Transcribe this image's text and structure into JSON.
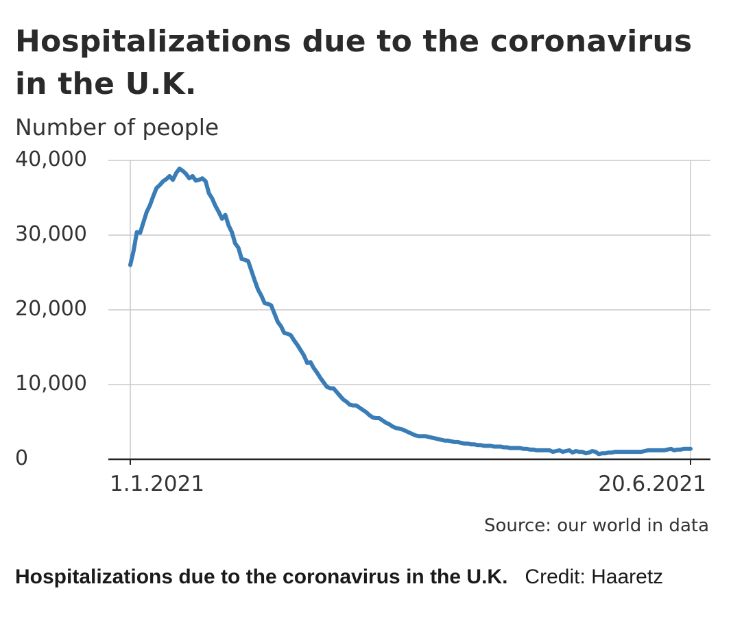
{
  "chart_data": {
    "type": "line",
    "title": "Hospitalizations due to the coronavirus in the U.K.",
    "ylabel": "Number of people",
    "xlabel": "",
    "ylim": [
      0,
      40000
    ],
    "yticks": [
      0,
      10000,
      20000,
      30000,
      40000
    ],
    "ytick_labels": [
      "0",
      "10,000",
      "20,000",
      "30,000",
      "40,000"
    ],
    "xtick_labels": [
      "1.1.2021",
      "20.6.2021"
    ],
    "grid": "horizontal and vertical at ticks",
    "line_color": "#3a7db6",
    "series": [
      {
        "values": [
          26000,
          27900,
          30400,
          30300,
          31700,
          33100,
          34000,
          35200,
          36300,
          36700,
          37200,
          37500,
          37900,
          37400,
          38300,
          38900,
          38600,
          38200,
          37600,
          37900,
          37300,
          37400,
          37600,
          37200,
          35600,
          34900,
          33900,
          33100,
          32200,
          32700,
          31300,
          30400,
          28900,
          28300,
          26800,
          26700,
          26500,
          25200,
          23900,
          22700,
          21900,
          20900,
          20800,
          20600,
          19500,
          18400,
          17800,
          16900,
          16800,
          16600,
          15900,
          15300,
          14600,
          13900,
          12900,
          13000,
          12200,
          11600,
          10900,
          10300,
          9700,
          9500,
          9500,
          9000,
          8500,
          8000,
          7700,
          7300,
          7200,
          7200,
          6900,
          6600,
          6300,
          5900,
          5600,
          5500,
          5500,
          5200,
          4900,
          4700,
          4400,
          4200,
          4100,
          4000,
          3800,
          3600,
          3400,
          3200,
          3100,
          3100,
          3100,
          3000,
          2900,
          2800,
          2700,
          2600,
          2500,
          2500,
          2400,
          2300,
          2300,
          2200,
          2100,
          2100,
          2000,
          2000,
          1900,
          1900,
          1800,
          1800,
          1800,
          1700,
          1700,
          1700,
          1600,
          1600,
          1500,
          1500,
          1500,
          1500,
          1400,
          1400,
          1300,
          1300,
          1200,
          1200,
          1200,
          1200,
          1200,
          1000,
          1100,
          1200,
          1000,
          1100,
          1200,
          900,
          1100,
          1000,
          1000,
          800,
          900,
          1100,
          1000,
          700,
          800,
          800,
          900,
          900,
          1000,
          1000,
          1000,
          1000,
          1000,
          1000,
          1000,
          1000,
          1000,
          1100,
          1200,
          1200,
          1200,
          1200,
          1200,
          1200,
          1300,
          1400,
          1200,
          1300,
          1300,
          1400,
          1400,
          1400
        ]
      }
    ]
  },
  "source": "Source: our world in data",
  "caption": {
    "title": "Hospitalizations due to the coronavirus in the U.K.",
    "credit": "Credit: Haaretz"
  }
}
